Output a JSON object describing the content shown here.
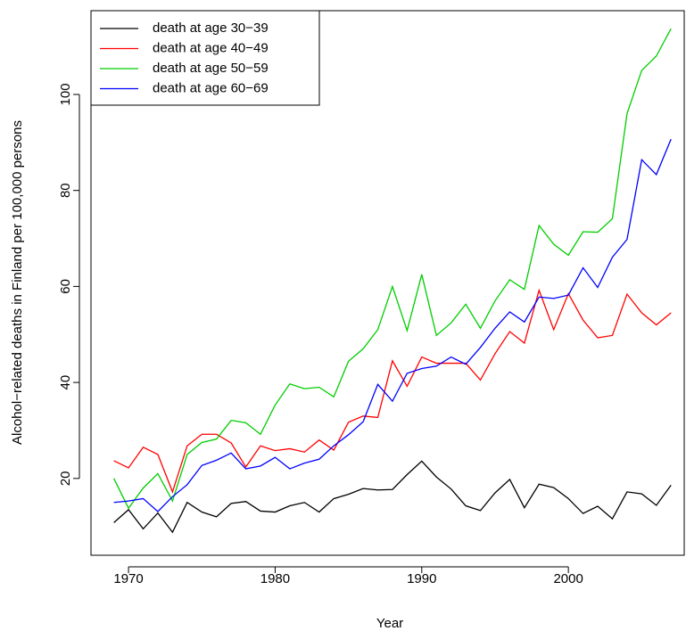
{
  "chart_data": {
    "type": "line",
    "x_label": "Year",
    "y_label": "Alcohol−related deaths in Finland per 100,000 persons",
    "x": [
      1969,
      1970,
      1971,
      1972,
      1973,
      1974,
      1975,
      1976,
      1977,
      1978,
      1979,
      1980,
      1981,
      1982,
      1983,
      1984,
      1985,
      1986,
      1987,
      1988,
      1989,
      1990,
      1991,
      1992,
      1993,
      1994,
      1995,
      1996,
      1997,
      1998,
      1999,
      2000,
      2001,
      2002,
      2003,
      2004,
      2005,
      2006,
      2007
    ],
    "series": [
      {
        "name": "death at age 30−39",
        "color": "#000000",
        "values": [
          10.8,
          13.5,
          9.5,
          12.8,
          8.8,
          15,
          13,
          12,
          14.8,
          15.2,
          13.2,
          13,
          14.3,
          15,
          13,
          15.8,
          16.7,
          17.9,
          17.6,
          17.7,
          20.8,
          23.6,
          20.3,
          17.8,
          14.3,
          13.3,
          17,
          19.8,
          13.9,
          18.8,
          18.1,
          15.8,
          12.7,
          14.2,
          11.6,
          17.2,
          16.8,
          14.4,
          18.6
        ]
      },
      {
        "name": "death at age 40−49",
        "color": "#ff0000",
        "values": [
          23.7,
          22.2,
          26.5,
          25,
          17.2,
          26.8,
          29.2,
          29.2,
          27.4,
          22.4,
          26.8,
          25.8,
          26.2,
          25.5,
          28,
          25.9,
          31.7,
          33,
          32.7,
          44.5,
          39.2,
          45.3,
          44,
          44,
          44,
          40.5,
          46,
          50.6,
          48.2,
          59.2,
          51,
          58.5,
          53,
          49.3,
          49.8,
          58.4,
          54.5,
          52,
          54.5
        ]
      },
      {
        "name": "death at age 50−59",
        "color": "#00cd00",
        "values": [
          20,
          13.8,
          18,
          21,
          15.3,
          25,
          27.5,
          28.2,
          32.1,
          31.6,
          29.2,
          35.3,
          39.7,
          38.7,
          39,
          37,
          44.4,
          47,
          51,
          60,
          50.8,
          62.5,
          49.8,
          52.4,
          56.3,
          51.3,
          57,
          61.4,
          59.4,
          72.7,
          68.8,
          66.5,
          71.4,
          71.3,
          74.1,
          96,
          105,
          108,
          113.7
        ]
      },
      {
        "name": "death at age 60−69",
        "color": "#0000ff",
        "values": [
          15,
          15.3,
          15.8,
          13.1,
          16.2,
          18.7,
          22.7,
          23.8,
          25.3,
          22,
          22.6,
          24.4,
          22,
          23.2,
          24,
          26.8,
          29.1,
          31.8,
          39.6,
          36.1,
          41.9,
          42.9,
          43.4,
          45.3,
          43.8,
          47.3,
          51.3,
          54.7,
          52.6,
          57.8,
          57.5,
          58.2,
          63.9,
          59.8,
          66.1,
          69.8,
          86.4,
          83.3,
          90.7
        ]
      }
    ],
    "xlim": [
      1967.44,
      2007.9
    ],
    "ylim": [
      4,
      117.45
    ],
    "xticks": [
      1970,
      1980,
      1990,
      2000
    ],
    "yticks": [
      20,
      40,
      60,
      80,
      100
    ],
    "legend": "topleft"
  }
}
